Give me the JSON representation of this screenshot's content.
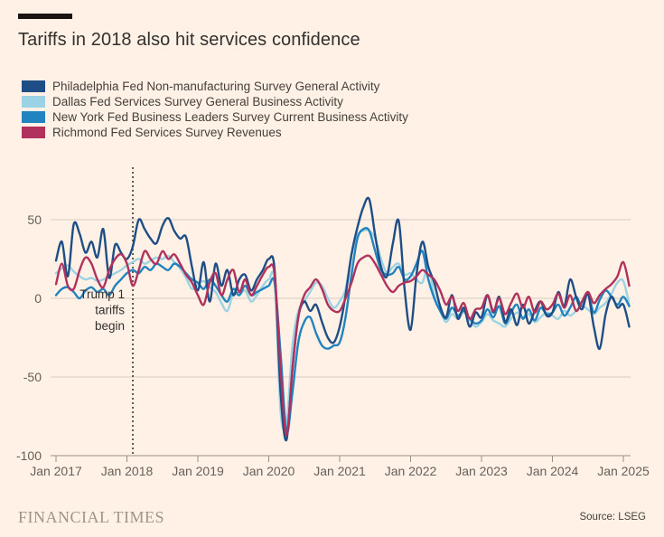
{
  "page": {
    "background": "#FFF1E5"
  },
  "header": {
    "title": "Tariffs in 2018 also hit services confidence"
  },
  "legend": {
    "items": [
      {
        "label": "Philadelphia Fed Non-manufacturing Survey General Activity",
        "color": "#1F4E86"
      },
      {
        "label": "Dallas Fed Services Survey General Business Activity",
        "color": "#9CD3E4"
      },
      {
        "label": "New York Fed Business Leaders Survey Current Business Activity",
        "color": "#2183BF"
      },
      {
        "label": "Richmond Fed Services Survey Revenues",
        "color": "#B0325C"
      }
    ]
  },
  "annotation": {
    "lines": [
      "Trump 1",
      "tariffs",
      "begin"
    ]
  },
  "footer": {
    "brand": "FINANCIAL TIMES",
    "source": "Source: LSEG"
  },
  "chart_data": {
    "type": "line",
    "title": "Tariffs in 2018 also hit services confidence",
    "x_start": "2017-01",
    "x_interval": "monthly",
    "x_tick_labels": [
      "Jan 2017",
      "Jan 2018",
      "Jan 2019",
      "Jan 2020",
      "Jan 2021",
      "Jan 2022",
      "Jan 2023",
      "Jan 2024",
      "Jan 2025"
    ],
    "y_ticks": [
      50,
      0,
      -50,
      -100
    ],
    "ylim": [
      -100,
      80
    ],
    "grid": "horizontal",
    "legend_position": "top-left",
    "event_line": {
      "month": "2018-02",
      "style": "dotted-vertical",
      "label": "Trump 1 tariffs begin"
    },
    "colors": {
      "grid": "#D8CCC0",
      "axis": "#998F86",
      "tick_text": "#66605B",
      "annotation": "#33302E"
    },
    "series": [
      {
        "name": "Philadelphia Fed Non-manufacturing Survey General Activity",
        "color": "#1F4E86",
        "values": [
          24,
          36,
          14,
          47,
          41,
          29,
          36,
          26,
          44,
          13,
          34,
          29,
          25,
          33,
          50,
          44,
          38,
          35,
          46,
          51,
          43,
          38,
          39,
          20,
          5,
          23,
          -2,
          22,
          8,
          18,
          2,
          12,
          15,
          5,
          12,
          18,
          25,
          18,
          -60,
          -90,
          -45,
          -12,
          -2,
          -8,
          -4,
          -15,
          -25,
          -28,
          -18,
          2,
          28,
          45,
          58,
          63,
          40,
          20,
          14,
          35,
          49,
          5,
          -20,
          15,
          36,
          20,
          10,
          -5,
          -12,
          2,
          -13,
          -6,
          -18,
          -9,
          -12,
          2,
          -9,
          1,
          -15,
          -7,
          -17,
          -4,
          -16,
          -8,
          -2,
          -11,
          -9,
          4,
          -5,
          12,
          1,
          -7,
          3,
          -18,
          -32,
          -10,
          1,
          -6,
          -4,
          -18
        ]
      },
      {
        "name": "Dallas Fed Services Survey General Business Activity",
        "color": "#9CD3E4",
        "values": [
          16,
          19,
          21,
          17,
          14,
          12,
          13,
          11,
          12,
          14,
          16,
          18,
          21,
          23,
          25,
          22,
          24,
          26,
          25,
          27,
          23,
          19,
          13,
          6,
          9,
          11,
          7,
          4,
          -3,
          -8,
          3,
          2,
          5,
          -2,
          2,
          8,
          12,
          10,
          -72,
          -79,
          -30,
          -8,
          -2,
          4,
          10,
          8,
          0,
          -6,
          -2,
          6,
          28,
          40,
          43,
          43,
          38,
          25,
          16,
          20,
          22,
          15,
          16,
          12,
          10,
          20,
          2,
          -8,
          -15,
          -10,
          -13,
          -9,
          -14,
          -18,
          -15,
          -10,
          -14,
          -16,
          -18,
          -13,
          -9,
          -12,
          -10,
          -15,
          -12,
          -9,
          -11,
          -13,
          -8,
          -11,
          -8,
          -5,
          -7,
          -10,
          -6,
          -3,
          3,
          10,
          11,
          -4
        ]
      },
      {
        "name": "New York Fed Business Leaders Survey Current Business Activity",
        "color": "#2183BF",
        "values": [
          2,
          6,
          7,
          4,
          0,
          5,
          7,
          4,
          6,
          2,
          8,
          12,
          16,
          18,
          16,
          20,
          18,
          22,
          20,
          18,
          22,
          20,
          16,
          12,
          10,
          6,
          12,
          8,
          2,
          -2,
          6,
          2,
          8,
          2,
          4,
          6,
          8,
          10,
          -35,
          -85,
          -60,
          -28,
          -15,
          -12,
          -22,
          -30,
          -32,
          -30,
          -28,
          -12,
          15,
          38,
          44,
          43,
          30,
          18,
          15,
          16,
          20,
          12,
          14,
          22,
          30,
          12,
          0,
          -8,
          -13,
          -6,
          -11,
          -8,
          -13,
          -16,
          -14,
          -7,
          -12,
          -5,
          -16,
          -9,
          -4,
          -13,
          -7,
          -14,
          -6,
          -10,
          -9,
          -4,
          -11,
          -6,
          1,
          -5,
          3,
          -9,
          -1,
          5,
          1,
          -4,
          1,
          -5
        ]
      },
      {
        "name": "Richmond Fed Services Survey Revenues",
        "color": "#B0325C",
        "values": [
          9,
          22,
          8,
          6,
          18,
          26,
          22,
          12,
          7,
          18,
          25,
          28,
          22,
          8,
          18,
          30,
          25,
          22,
          30,
          25,
          28,
          22,
          15,
          10,
          2,
          -4,
          10,
          16,
          2,
          12,
          18,
          4,
          12,
          2,
          8,
          15,
          20,
          15,
          -45,
          -87,
          -45,
          -12,
          2,
          7,
          12,
          6,
          -4,
          -8,
          -8,
          0,
          10,
          22,
          26,
          27,
          22,
          15,
          8,
          4,
          8,
          10,
          11,
          14,
          18,
          15,
          12,
          5,
          -4,
          1,
          -8,
          -3,
          -13,
          -7,
          -6,
          2,
          -8,
          0,
          -10,
          -3,
          3,
          -6,
          1,
          -9,
          -2,
          -7,
          -4,
          3,
          -6,
          2,
          -8,
          -2,
          4,
          -3,
          2,
          6,
          9,
          14,
          23,
          8
        ]
      }
    ]
  }
}
